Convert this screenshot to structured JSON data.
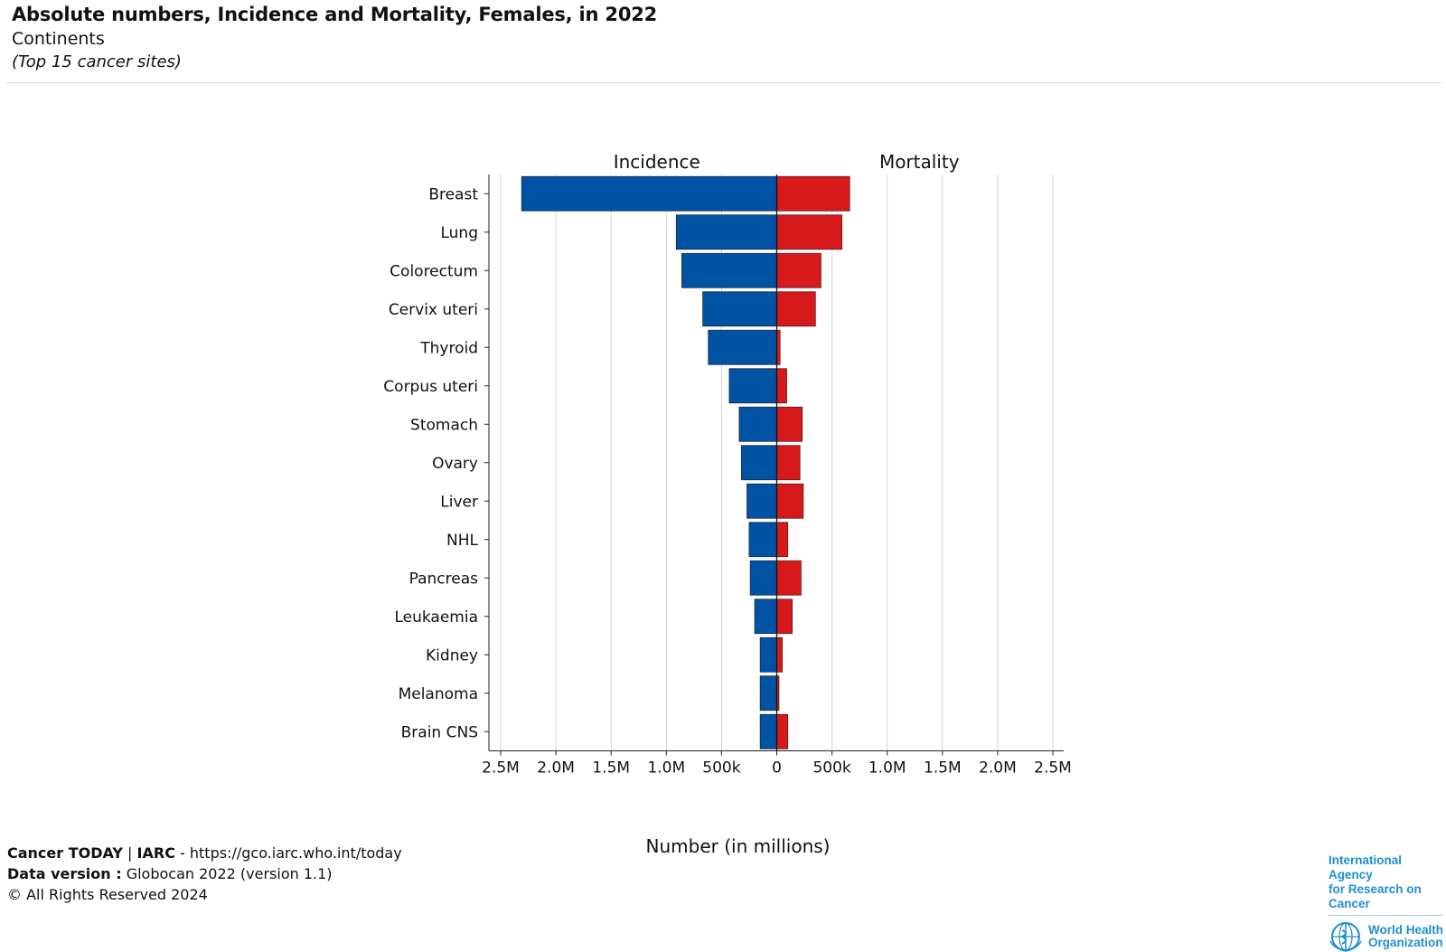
{
  "header": {
    "title": "Absolute numbers, Incidence and Mortality, Females, in 2022",
    "subtitle": "Continents",
    "note": "(Top 15 cancer sites)"
  },
  "footer": {
    "line1_bold": "Cancer TODAY",
    "line1_sep": " | ",
    "line1_org": "IARC",
    "line1_rest": " - https://gco.iarc.who.int/today",
    "line2_bold": "Data version :",
    "line2_rest": " Globocan 2022 (version 1.1)",
    "line3": "© All Rights Reserved 2024"
  },
  "logo": {
    "iarc_line1": "International Agency",
    "iarc_line2": "for Research on Cancer",
    "who_line1": "World Health",
    "who_line2": "Organization"
  },
  "colors": {
    "incidence": "#0052a2",
    "mortality": "#d7191c"
  },
  "chart_data": {
    "type": "bar",
    "orientation": "horizontal-back-to-back",
    "title": "Absolute numbers, Incidence and Mortality, Females, in 2022",
    "xlabel": "Number (in millions)",
    "panel_labels": [
      "Incidence",
      "Mortality"
    ],
    "xlim": [
      -2500000,
      2500000
    ],
    "xticks": [
      -2500000,
      -2000000,
      -1500000,
      -1000000,
      -500000,
      0,
      500000,
      1000000,
      1500000,
      2000000,
      2500000
    ],
    "xtick_labels": [
      "2.5M",
      "2.0M",
      "1.5M",
      "1.0M",
      "500k",
      "0",
      "500k",
      "1.0M",
      "1.5M",
      "2.0M",
      "2.5M"
    ],
    "grid": true,
    "categories": [
      "Breast",
      "Lung",
      "Colorectum",
      "Cervix uteri",
      "Thyroid",
      "Corpus uteri",
      "Stomach",
      "Ovary",
      "Liver",
      "NHL",
      "Pancreas",
      "Leukaemia",
      "Kidney",
      "Melanoma",
      "Brain CNS"
    ],
    "series": [
      {
        "name": "Incidence",
        "values": [
          2310000,
          910000,
          860000,
          670000,
          620000,
          430000,
          340000,
          320000,
          270000,
          250000,
          240000,
          200000,
          150000,
          150000,
          150000
        ]
      },
      {
        "name": "Mortality",
        "values": [
          660000,
          590000,
          400000,
          350000,
          30000,
          90000,
          230000,
          210000,
          240000,
          100000,
          220000,
          140000,
          50000,
          20000,
          100000
        ]
      }
    ]
  }
}
